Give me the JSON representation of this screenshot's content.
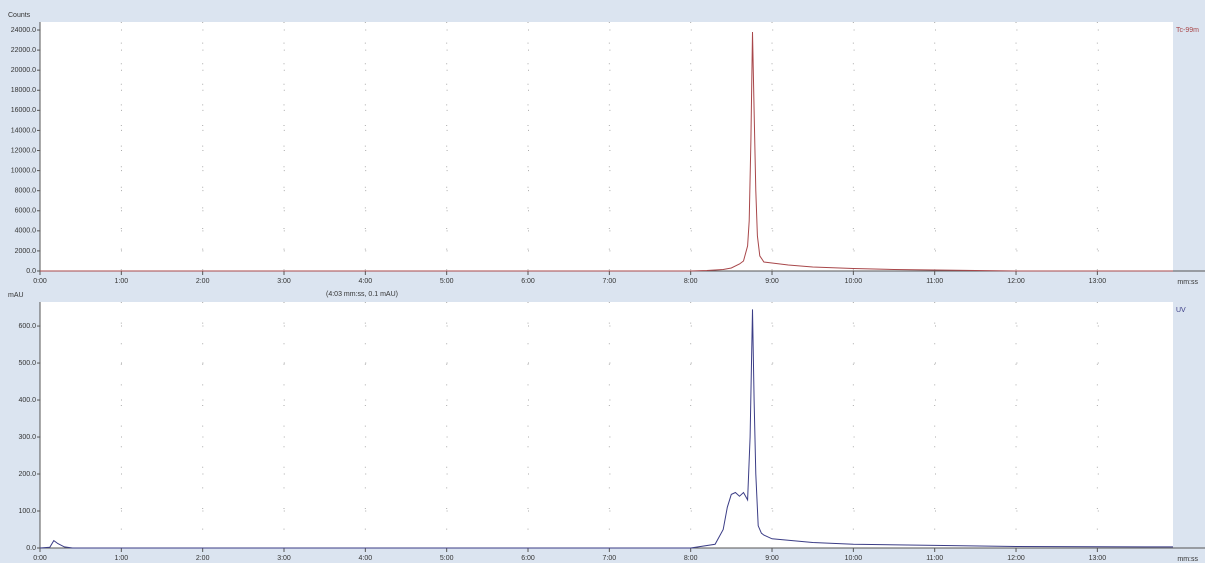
{
  "chart_data": [
    {
      "type": "line",
      "y_label": "Counts",
      "x_label": "mm:ss",
      "grid": true,
      "x": [
        0,
        1,
        2,
        4,
        6,
        8,
        8.2,
        8.4,
        8.5,
        8.6,
        8.65,
        8.7,
        8.72,
        8.74,
        8.76,
        8.78,
        8.8,
        8.82,
        8.85,
        8.9,
        9.0,
        9.2,
        9.5,
        10,
        10.5,
        11,
        12,
        13.93
      ],
      "series": [
        {
          "name": "Tc-99m",
          "color": "#a8474a",
          "values": [
            0,
            0,
            0,
            0,
            0,
            0,
            50,
            150,
            300,
            700,
            1000,
            2500,
            5000,
            13000,
            23800,
            16000,
            8000,
            3500,
            1500,
            900,
            800,
            600,
            400,
            250,
            150,
            100,
            0,
            0
          ]
        }
      ],
      "xlim": [
        0,
        13.93
      ],
      "ylim": [
        0,
        24800
      ],
      "xticks": [
        {
          "value": 0,
          "label": "0:00"
        },
        {
          "value": 1,
          "label": "1:00"
        },
        {
          "value": 2,
          "label": "2:00"
        },
        {
          "value": 3,
          "label": "3:00"
        },
        {
          "value": 4,
          "label": "4:00"
        },
        {
          "value": 5,
          "label": "5:00"
        },
        {
          "value": 6,
          "label": "6:00"
        },
        {
          "value": 7,
          "label": "7:00"
        },
        {
          "value": 8,
          "label": "8:00"
        },
        {
          "value": 9,
          "label": "9:00"
        },
        {
          "value": 10,
          "label": "10:00"
        },
        {
          "value": 11,
          "label": "11:00"
        },
        {
          "value": 12,
          "label": "12:00"
        },
        {
          "value": 13,
          "label": "13:00"
        }
      ],
      "yticks": [
        {
          "value": 0,
          "label": "0.0"
        },
        {
          "value": 2000,
          "label": "2000.0"
        },
        {
          "value": 4000,
          "label": "4000.0"
        },
        {
          "value": 6000,
          "label": "6000.0"
        },
        {
          "value": 8000,
          "label": "8000.0"
        },
        {
          "value": 10000,
          "label": "10000.0"
        },
        {
          "value": 12000,
          "label": "12000.0"
        },
        {
          "value": 14000,
          "label": "14000.0"
        },
        {
          "value": 16000,
          "label": "16000.0"
        },
        {
          "value": 18000,
          "label": "18000.0"
        },
        {
          "value": 20000,
          "label": "20000.0"
        },
        {
          "value": 22000,
          "label": "22000.0"
        },
        {
          "value": 24000,
          "label": "24000.0"
        }
      ]
    },
    {
      "type": "line",
      "y_label": "mAU",
      "x_label": "mm:ss",
      "grid": true,
      "annotation": "(4:03 mm:ss, 0.1 mAU)",
      "x": [
        0,
        0.12,
        0.17,
        0.22,
        0.3,
        0.4,
        1,
        4,
        8,
        8.3,
        8.4,
        8.45,
        8.5,
        8.55,
        8.6,
        8.65,
        8.7,
        8.73,
        8.76,
        8.78,
        8.8,
        8.83,
        8.87,
        8.9,
        9.0,
        9.5,
        10,
        11,
        12,
        13.93
      ],
      "series": [
        {
          "name": "UV",
          "color": "#3b3d86",
          "values": [
            0,
            2,
            20,
            12,
            3,
            0,
            0,
            0,
            0,
            10,
            50,
            110,
            145,
            150,
            140,
            150,
            130,
            300,
            645,
            400,
            200,
            60,
            40,
            35,
            25,
            15,
            10,
            7,
            4,
            3
          ]
        }
      ],
      "xlim": [
        0,
        13.93
      ],
      "ylim": [
        0,
        665
      ],
      "xticks": [
        {
          "value": 0,
          "label": "0:00"
        },
        {
          "value": 1,
          "label": "1:00"
        },
        {
          "value": 2,
          "label": "2:00"
        },
        {
          "value": 3,
          "label": "3:00"
        },
        {
          "value": 4,
          "label": "4:00"
        },
        {
          "value": 5,
          "label": "5:00"
        },
        {
          "value": 6,
          "label": "6:00"
        },
        {
          "value": 7,
          "label": "7:00"
        },
        {
          "value": 8,
          "label": "8:00"
        },
        {
          "value": 9,
          "label": "9:00"
        },
        {
          "value": 10,
          "label": "10:00"
        },
        {
          "value": 11,
          "label": "11:00"
        },
        {
          "value": 12,
          "label": "12:00"
        },
        {
          "value": 13,
          "label": "13:00"
        }
      ],
      "yticks": [
        {
          "value": 0,
          "label": "0.0"
        },
        {
          "value": 100,
          "label": "100.0"
        },
        {
          "value": 200,
          "label": "200.0"
        },
        {
          "value": 300,
          "label": "300.0"
        },
        {
          "value": 400,
          "label": "400.0"
        },
        {
          "value": 500,
          "label": "500.0"
        },
        {
          "value": 600,
          "label": "600.0"
        }
      ]
    }
  ]
}
